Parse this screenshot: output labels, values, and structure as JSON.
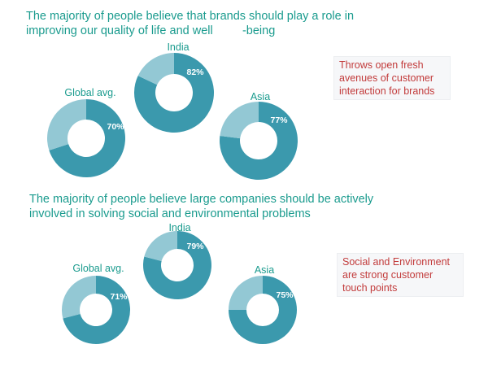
{
  "colors": {
    "primary": "#3b99ad",
    "secondary": "#93c8d4",
    "heading": "#1a9b8e",
    "callout_text": "#c23b3b"
  },
  "chart_data": [
    {
      "type": "pie",
      "title": "The majority of people believe that brands should play a role in improving our quality of life and well -being",
      "title_lines": [
        "The majority of people believe that brands should play a role in",
        "improving our quality of life and well         -being"
      ],
      "slices": [
        {
          "label": "Global avg.",
          "value": 70,
          "value_label": "70%"
        },
        {
          "label": "India",
          "value": 82,
          "value_label": "82%"
        },
        {
          "label": "Asia",
          "value": 77,
          "value_label": "77%"
        }
      ],
      "callout_lines": [
        "Throws open fresh",
        "avenues of customer",
        "interaction for brands"
      ]
    },
    {
      "type": "pie",
      "title": "The majority of people believe large companies should be actively involved in solving social and environmental problems",
      "title_lines": [
        "The majority of people believe large companies should be actively",
        "involved in solving social and environmental problems"
      ],
      "slices": [
        {
          "label": "Global avg.",
          "value": 71,
          "value_label": "71%"
        },
        {
          "label": "India",
          "value": 79,
          "value_label": "79%"
        },
        {
          "label": "Asia",
          "value": 75,
          "value_label": "75%"
        }
      ],
      "callout_lines": [
        "Social and Environment",
        "are strong customer",
        "touch points"
      ]
    }
  ]
}
